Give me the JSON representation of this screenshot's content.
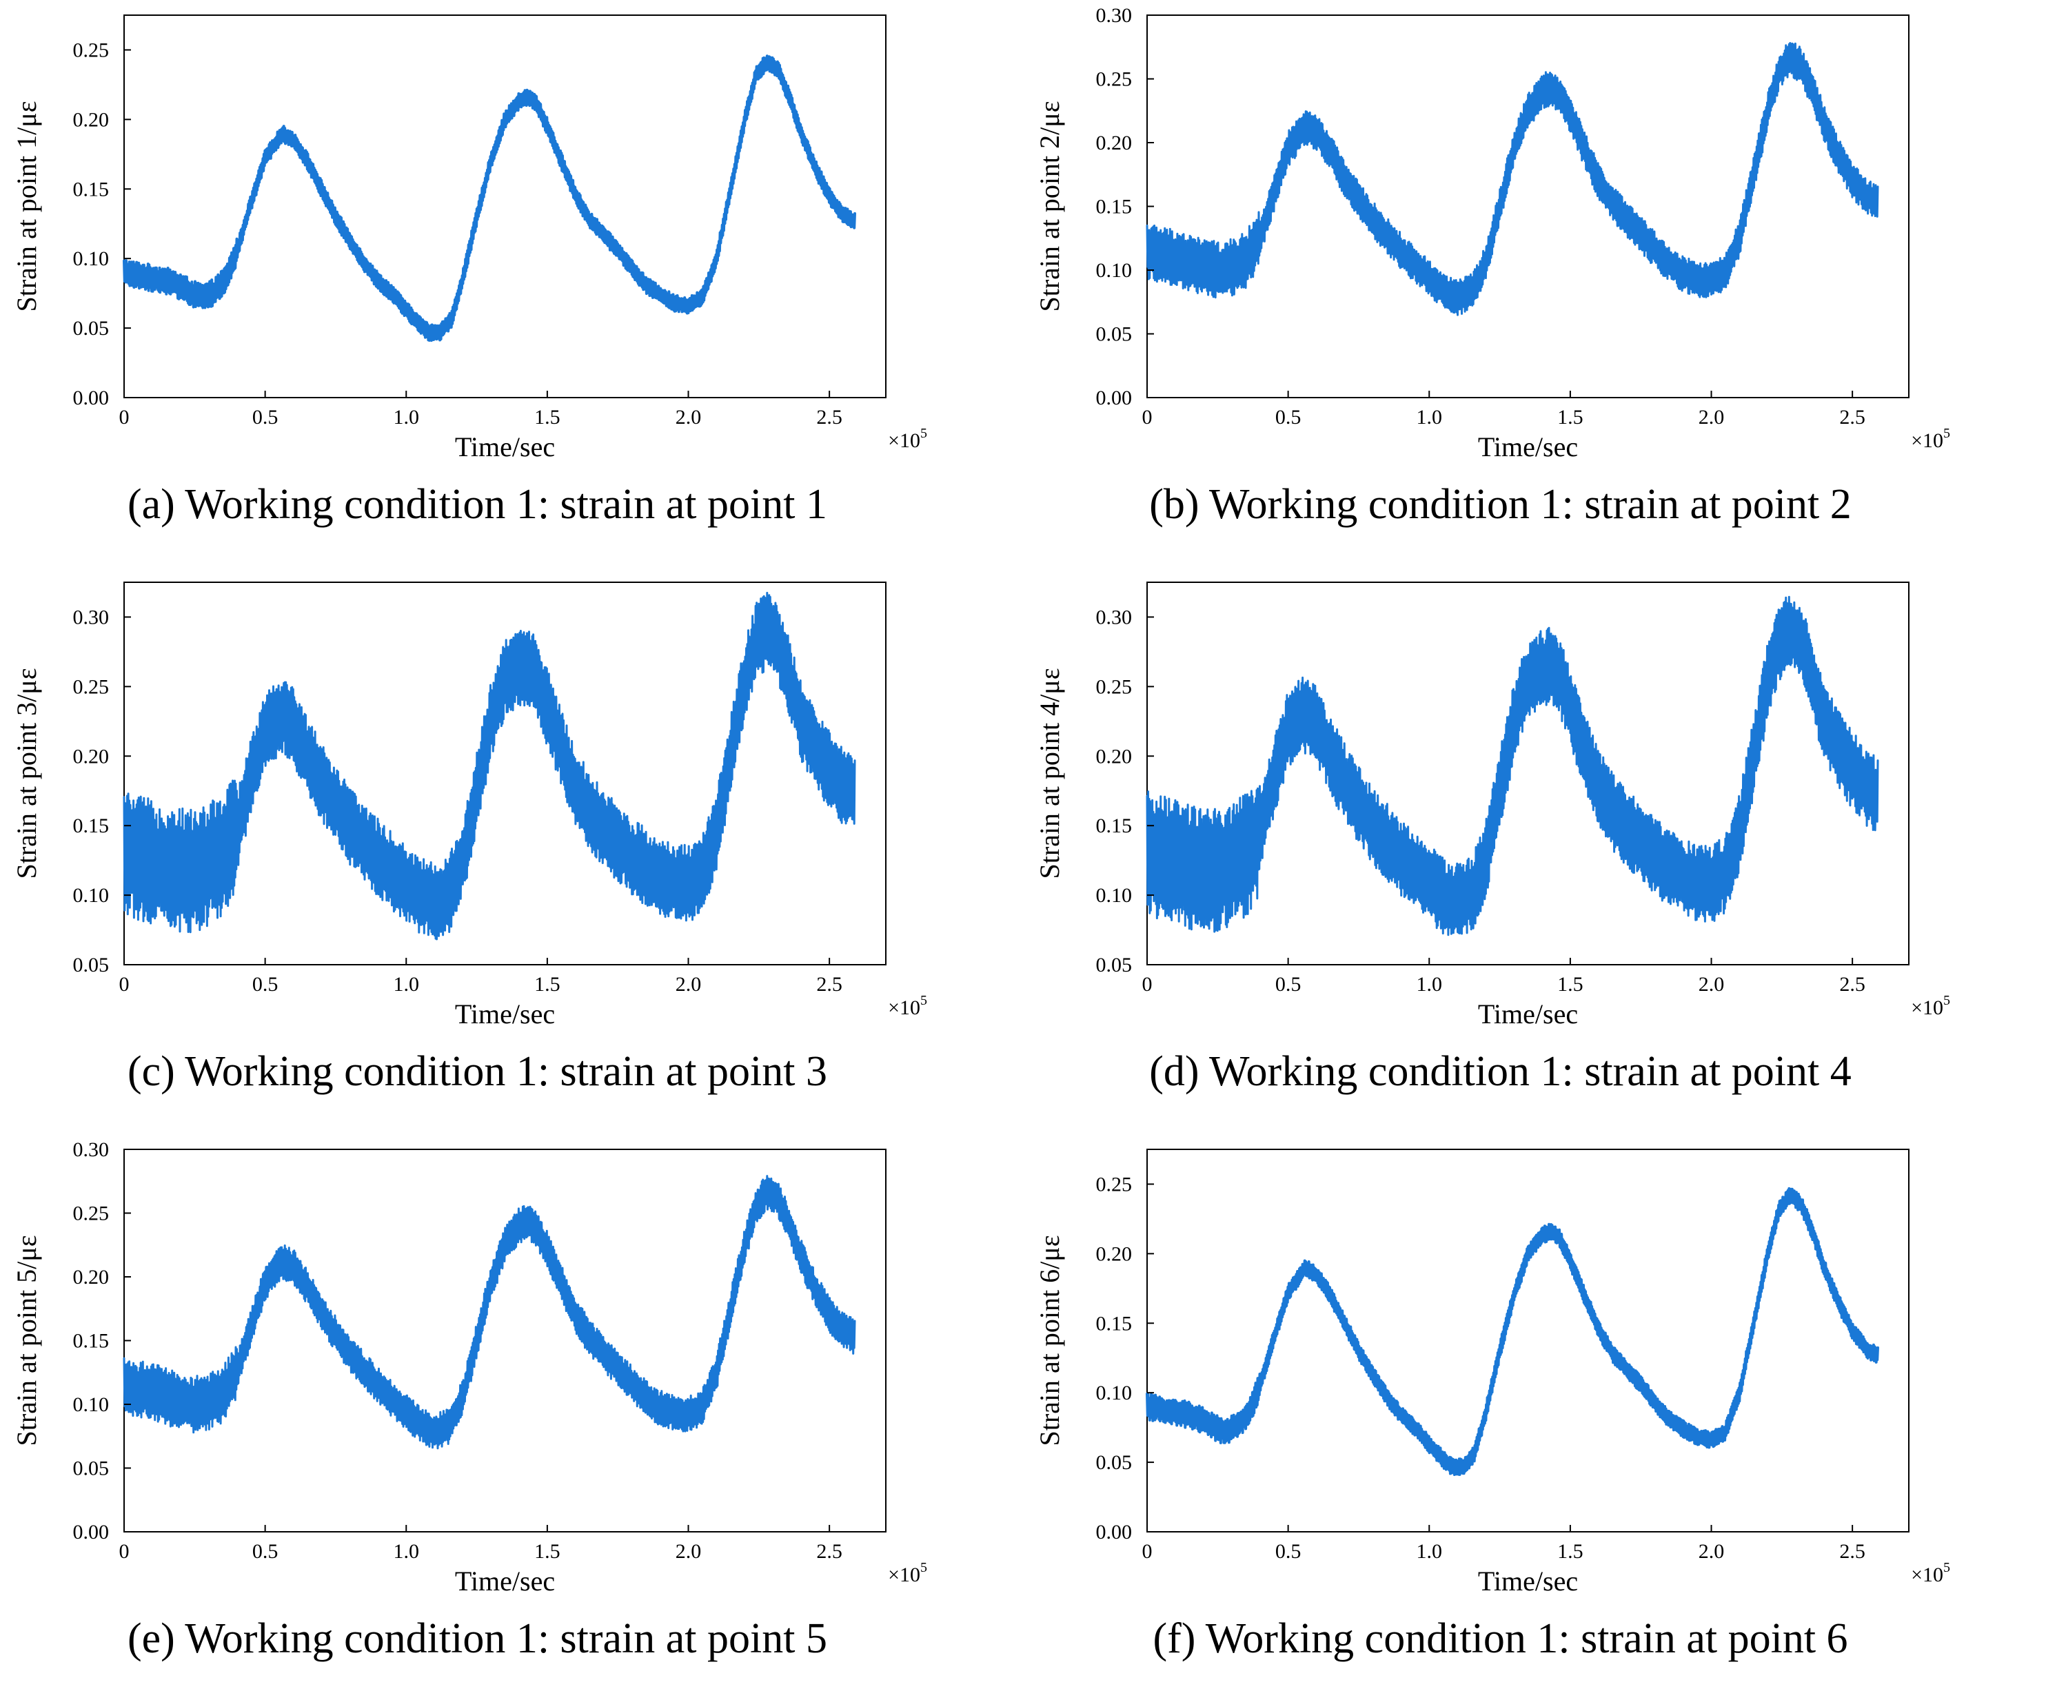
{
  "colors": {
    "series": "#1a78d6",
    "axis": "#000000"
  },
  "chart_data": [
    {
      "type": "line",
      "panel": "a",
      "caption": "(a) Working condition 1: strain at point 1",
      "xlabel": "Time/sec",
      "x_multiplier": "×10",
      "x_multiplier_exp": "5",
      "ylabel": "Strain at point 1/με",
      "xlim": [
        0,
        2.7
      ],
      "ylim": [
        0,
        0.275
      ],
      "xticks": [
        0,
        0.5,
        1.0,
        1.5,
        2.0,
        2.5
      ],
      "xtick_labels": [
        "0",
        "0.5",
        "1.0",
        "1.5",
        "2.0",
        "2.5"
      ],
      "yticks": [
        0,
        0.05,
        0.1,
        0.15,
        0.2,
        0.25
      ],
      "ytick_labels": [
        "0.00",
        "0.05",
        "0.10",
        "0.15",
        "0.20",
        "0.25"
      ],
      "noise": 0.006,
      "series": [
        {
          "name": "strain point 1",
          "x": [
            0,
            0.05,
            0.1,
            0.15,
            0.2,
            0.25,
            0.28,
            0.32,
            0.36,
            0.4,
            0.45,
            0.5,
            0.56,
            0.6,
            0.65,
            0.7,
            0.75,
            0.8,
            0.85,
            0.9,
            0.95,
            1.0,
            1.05,
            1.08,
            1.12,
            1.16,
            1.2,
            1.25,
            1.3,
            1.35,
            1.4,
            1.43,
            1.46,
            1.5,
            1.55,
            1.6,
            1.65,
            1.7,
            1.75,
            1.8,
            1.85,
            1.9,
            1.95,
            2.0,
            2.05,
            2.1,
            2.15,
            2.2,
            2.24,
            2.28,
            2.32,
            2.36,
            2.4,
            2.45,
            2.5,
            2.55,
            2.59
          ],
          "y": [
            0.09,
            0.088,
            0.086,
            0.084,
            0.08,
            0.074,
            0.072,
            0.076,
            0.085,
            0.105,
            0.14,
            0.172,
            0.19,
            0.185,
            0.17,
            0.15,
            0.13,
            0.113,
            0.097,
            0.084,
            0.075,
            0.063,
            0.052,
            0.047,
            0.047,
            0.056,
            0.085,
            0.13,
            0.17,
            0.2,
            0.213,
            0.216,
            0.212,
            0.195,
            0.17,
            0.146,
            0.128,
            0.117,
            0.106,
            0.093,
            0.081,
            0.074,
            0.068,
            0.066,
            0.072,
            0.1,
            0.15,
            0.2,
            0.232,
            0.242,
            0.235,
            0.215,
            0.19,
            0.165,
            0.145,
            0.131,
            0.127
          ]
        }
      ]
    },
    {
      "type": "line",
      "panel": "b",
      "caption": "(b) Working condition 1: strain at point 2",
      "xlabel": "Time/sec",
      "x_multiplier": "×10",
      "x_multiplier_exp": "5",
      "ylabel": "Strain at point 2/με",
      "xlim": [
        0,
        2.7
      ],
      "ylim": [
        0,
        0.3
      ],
      "xticks": [
        0,
        0.5,
        1.0,
        1.5,
        2.0,
        2.5
      ],
      "xtick_labels": [
        "0",
        "0.5",
        "1.0",
        "1.5",
        "2.0",
        "2.5"
      ],
      "yticks": [
        0,
        0.05,
        0.1,
        0.15,
        0.2,
        0.25,
        0.3
      ],
      "ytick_labels": [
        "0.00",
        "0.05",
        "0.10",
        "0.15",
        "0.20",
        "0.25",
        "0.30"
      ],
      "noise": 0.014,
      "series": [
        {
          "name": "strain point 2",
          "x": [
            0,
            0.05,
            0.1,
            0.15,
            0.2,
            0.25,
            0.3,
            0.35,
            0.4,
            0.45,
            0.5,
            0.56,
            0.6,
            0.65,
            0.7,
            0.75,
            0.8,
            0.85,
            0.9,
            0.95,
            1.0,
            1.05,
            1.1,
            1.15,
            1.2,
            1.25,
            1.3,
            1.35,
            1.4,
            1.43,
            1.46,
            1.5,
            1.55,
            1.6,
            1.65,
            1.7,
            1.75,
            1.8,
            1.85,
            1.9,
            1.95,
            2.0,
            2.05,
            2.1,
            2.15,
            2.2,
            2.24,
            2.28,
            2.32,
            2.36,
            2.4,
            2.45,
            2.5,
            2.55,
            2.59
          ],
          "y": [
            0.115,
            0.112,
            0.11,
            0.106,
            0.102,
            0.1,
            0.102,
            0.108,
            0.125,
            0.16,
            0.195,
            0.212,
            0.208,
            0.192,
            0.172,
            0.155,
            0.14,
            0.127,
            0.115,
            0.104,
            0.094,
            0.084,
            0.078,
            0.083,
            0.105,
            0.15,
            0.195,
            0.225,
            0.24,
            0.243,
            0.238,
            0.222,
            0.195,
            0.17,
            0.152,
            0.14,
            0.128,
            0.116,
            0.105,
            0.097,
            0.093,
            0.092,
            0.098,
            0.125,
            0.175,
            0.225,
            0.256,
            0.267,
            0.26,
            0.24,
            0.215,
            0.19,
            0.17,
            0.158,
            0.153
          ]
        }
      ]
    },
    {
      "type": "line",
      "panel": "c",
      "caption": "(c) Working condition 1: strain at point 3",
      "xlabel": "Time/sec",
      "x_multiplier": "×10",
      "x_multiplier_exp": "5",
      "ylabel": "Strain at point 3/με",
      "xlim": [
        0,
        2.7
      ],
      "ylim": [
        0.05,
        0.325
      ],
      "xticks": [
        0,
        0.5,
        1.0,
        1.5,
        2.0,
        2.5
      ],
      "xtick_labels": [
        "0",
        "0.5",
        "1.0",
        "1.5",
        "2.0",
        "2.5"
      ],
      "yticks": [
        0.05,
        0.1,
        0.15,
        0.2,
        0.25,
        0.3
      ],
      "ytick_labels": [
        "0.05",
        "0.10",
        "0.15",
        "0.20",
        "0.25",
        "0.30"
      ],
      "noise": 0.028,
      "series": [
        {
          "name": "strain point 3",
          "x": [
            0,
            0.05,
            0.1,
            0.15,
            0.2,
            0.25,
            0.3,
            0.35,
            0.4,
            0.45,
            0.5,
            0.56,
            0.6,
            0.65,
            0.7,
            0.75,
            0.8,
            0.85,
            0.9,
            0.95,
            1.0,
            1.05,
            1.1,
            1.15,
            1.2,
            1.25,
            1.3,
            1.35,
            1.4,
            1.43,
            1.46,
            1.5,
            1.55,
            1.6,
            1.65,
            1.7,
            1.75,
            1.8,
            1.85,
            1.9,
            1.95,
            2.0,
            2.05,
            2.1,
            2.15,
            2.2,
            2.24,
            2.28,
            2.32,
            2.36,
            2.4,
            2.45,
            2.5,
            2.55,
            2.59
          ],
          "y": [
            0.13,
            0.127,
            0.124,
            0.12,
            0.118,
            0.118,
            0.122,
            0.128,
            0.145,
            0.185,
            0.22,
            0.23,
            0.222,
            0.2,
            0.182,
            0.165,
            0.15,
            0.138,
            0.127,
            0.117,
            0.108,
            0.1,
            0.095,
            0.1,
            0.125,
            0.175,
            0.225,
            0.255,
            0.263,
            0.265,
            0.258,
            0.235,
            0.205,
            0.178,
            0.16,
            0.148,
            0.138,
            0.128,
            0.12,
            0.113,
            0.109,
            0.108,
            0.115,
            0.145,
            0.2,
            0.255,
            0.282,
            0.29,
            0.28,
            0.255,
            0.225,
            0.205,
            0.19,
            0.178,
            0.172
          ]
        }
      ]
    },
    {
      "type": "line",
      "panel": "d",
      "caption": "(d) Working condition 1: strain at point 4",
      "xlabel": "Time/sec",
      "x_multiplier": "×10",
      "x_multiplier_exp": "5",
      "ylabel": "Strain at point 4/με",
      "xlim": [
        0,
        2.7
      ],
      "ylim": [
        0.05,
        0.325
      ],
      "xticks": [
        0,
        0.5,
        1.0,
        1.5,
        2.0,
        2.5
      ],
      "xtick_labels": [
        "0",
        "0.5",
        "1.0",
        "1.5",
        "2.0",
        "2.5"
      ],
      "yticks": [
        0.05,
        0.1,
        0.15,
        0.2,
        0.25,
        0.3
      ],
      "ytick_labels": [
        "0.05",
        "0.10",
        "0.15",
        "0.20",
        "0.25",
        "0.30"
      ],
      "noise": 0.028,
      "series": [
        {
          "name": "strain point 4",
          "x": [
            0,
            0.05,
            0.1,
            0.15,
            0.2,
            0.25,
            0.3,
            0.35,
            0.4,
            0.45,
            0.5,
            0.56,
            0.6,
            0.65,
            0.7,
            0.75,
            0.8,
            0.85,
            0.9,
            0.95,
            1.0,
            1.05,
            1.1,
            1.15,
            1.2,
            1.25,
            1.3,
            1.35,
            1.4,
            1.43,
            1.46,
            1.5,
            1.55,
            1.6,
            1.65,
            1.7,
            1.75,
            1.8,
            1.85,
            1.9,
            1.95,
            2.0,
            2.05,
            2.1,
            2.15,
            2.2,
            2.24,
            2.28,
            2.32,
            2.36,
            2.4,
            2.45,
            2.5,
            2.55,
            2.59
          ],
          "y": [
            0.13,
            0.127,
            0.124,
            0.12,
            0.118,
            0.118,
            0.122,
            0.128,
            0.145,
            0.185,
            0.22,
            0.23,
            0.222,
            0.2,
            0.182,
            0.165,
            0.15,
            0.138,
            0.127,
            0.117,
            0.108,
            0.1,
            0.095,
            0.1,
            0.125,
            0.175,
            0.225,
            0.255,
            0.263,
            0.265,
            0.258,
            0.235,
            0.205,
            0.178,
            0.16,
            0.148,
            0.138,
            0.128,
            0.12,
            0.113,
            0.109,
            0.108,
            0.115,
            0.145,
            0.2,
            0.255,
            0.282,
            0.29,
            0.28,
            0.255,
            0.225,
            0.205,
            0.19,
            0.178,
            0.172
          ]
        }
      ]
    },
    {
      "type": "line",
      "panel": "e",
      "caption": "(e) Working condition 1: strain at point 5",
      "xlabel": "Time/sec",
      "x_multiplier": "×10",
      "x_multiplier_exp": "5",
      "ylabel": "Strain at point 5/με",
      "xlim": [
        0,
        2.7
      ],
      "ylim": [
        0,
        0.3
      ],
      "xticks": [
        0,
        0.5,
        1.0,
        1.5,
        2.0,
        2.5
      ],
      "xtick_labels": [
        "0",
        "0.5",
        "1.0",
        "1.5",
        "2.0",
        "2.5"
      ],
      "yticks": [
        0,
        0.05,
        0.1,
        0.15,
        0.2,
        0.25,
        0.3
      ],
      "ytick_labels": [
        "0.00",
        "0.05",
        "0.10",
        "0.15",
        "0.20",
        "0.25",
        "0.30"
      ],
      "noise": 0.014,
      "series": [
        {
          "name": "strain point 5",
          "x": [
            0,
            0.05,
            0.1,
            0.15,
            0.2,
            0.25,
            0.3,
            0.35,
            0.4,
            0.45,
            0.5,
            0.56,
            0.6,
            0.65,
            0.7,
            0.75,
            0.8,
            0.85,
            0.9,
            0.95,
            1.0,
            1.05,
            1.1,
            1.15,
            1.2,
            1.25,
            1.3,
            1.35,
            1.4,
            1.43,
            1.46,
            1.5,
            1.55,
            1.6,
            1.65,
            1.7,
            1.75,
            1.8,
            1.85,
            1.9,
            1.95,
            2.0,
            2.05,
            2.1,
            2.15,
            2.2,
            2.24,
            2.28,
            2.32,
            2.36,
            2.4,
            2.45,
            2.5,
            2.55,
            2.59
          ],
          "y": [
            0.115,
            0.112,
            0.11,
            0.106,
            0.102,
            0.1,
            0.102,
            0.108,
            0.125,
            0.16,
            0.195,
            0.212,
            0.208,
            0.192,
            0.172,
            0.155,
            0.14,
            0.127,
            0.115,
            0.104,
            0.094,
            0.084,
            0.078,
            0.083,
            0.105,
            0.15,
            0.195,
            0.225,
            0.24,
            0.243,
            0.238,
            0.222,
            0.195,
            0.17,
            0.152,
            0.14,
            0.128,
            0.116,
            0.105,
            0.097,
            0.093,
            0.092,
            0.098,
            0.125,
            0.175,
            0.225,
            0.256,
            0.267,
            0.26,
            0.24,
            0.215,
            0.19,
            0.17,
            0.158,
            0.153
          ]
        }
      ]
    },
    {
      "type": "line",
      "panel": "f",
      "caption": "(f) Working condition 1: strain at point 6",
      "xlabel": "Time/sec",
      "x_multiplier": "×10",
      "x_multiplier_exp": "5",
      "ylabel": "Strain at point 6/με",
      "xlim": [
        0,
        2.7
      ],
      "ylim": [
        0,
        0.275
      ],
      "xticks": [
        0,
        0.5,
        1.0,
        1.5,
        2.0,
        2.5
      ],
      "xtick_labels": [
        "0",
        "0.5",
        "1.0",
        "1.5",
        "2.0",
        "2.5"
      ],
      "yticks": [
        0,
        0.05,
        0.1,
        0.15,
        0.2,
        0.25
      ],
      "ytick_labels": [
        "0.00",
        "0.05",
        "0.10",
        "0.15",
        "0.20",
        "0.25"
      ],
      "noise": 0.006,
      "series": [
        {
          "name": "strain point 6",
          "x": [
            0,
            0.05,
            0.1,
            0.15,
            0.2,
            0.25,
            0.28,
            0.32,
            0.36,
            0.4,
            0.45,
            0.5,
            0.56,
            0.6,
            0.65,
            0.7,
            0.75,
            0.8,
            0.85,
            0.9,
            0.95,
            1.0,
            1.05,
            1.08,
            1.12,
            1.16,
            1.2,
            1.25,
            1.3,
            1.35,
            1.4,
            1.43,
            1.46,
            1.5,
            1.55,
            1.6,
            1.65,
            1.7,
            1.75,
            1.8,
            1.85,
            1.9,
            1.95,
            2.0,
            2.05,
            2.1,
            2.15,
            2.2,
            2.24,
            2.28,
            2.32,
            2.36,
            2.4,
            2.45,
            2.5,
            2.55,
            2.59
          ],
          "y": [
            0.09,
            0.088,
            0.086,
            0.084,
            0.08,
            0.074,
            0.072,
            0.076,
            0.085,
            0.105,
            0.14,
            0.172,
            0.19,
            0.185,
            0.17,
            0.15,
            0.13,
            0.113,
            0.097,
            0.084,
            0.075,
            0.063,
            0.052,
            0.047,
            0.047,
            0.056,
            0.085,
            0.13,
            0.17,
            0.2,
            0.213,
            0.216,
            0.212,
            0.195,
            0.17,
            0.146,
            0.128,
            0.117,
            0.106,
            0.093,
            0.081,
            0.074,
            0.068,
            0.066,
            0.072,
            0.1,
            0.15,
            0.2,
            0.232,
            0.242,
            0.235,
            0.215,
            0.19,
            0.165,
            0.145,
            0.131,
            0.127
          ]
        }
      ]
    }
  ]
}
